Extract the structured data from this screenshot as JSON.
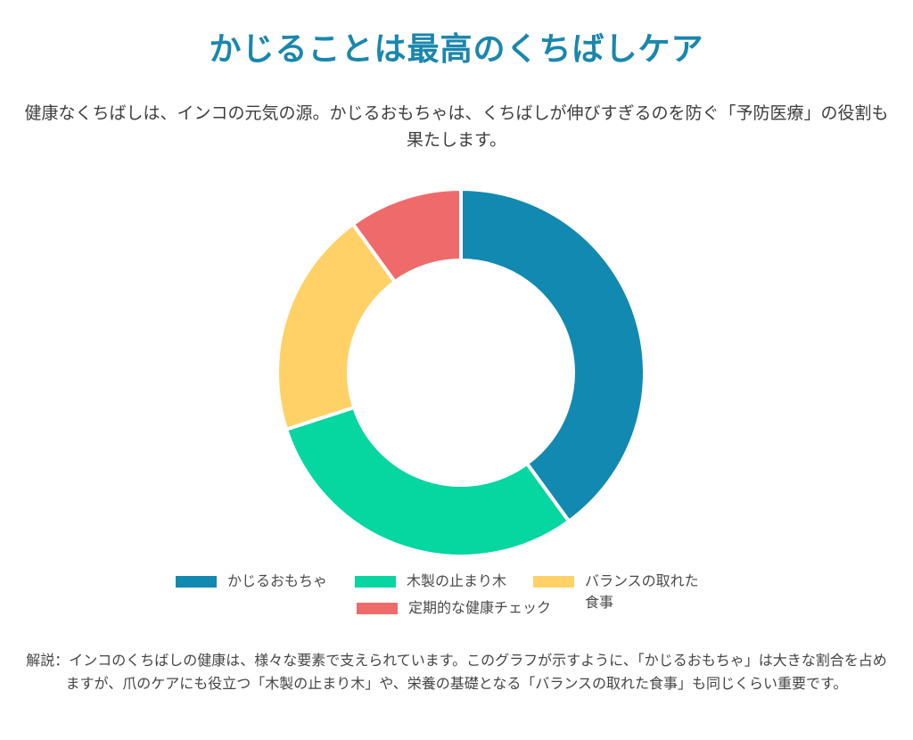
{
  "title": "かじることは最高のくちばしケア",
  "subtitle": "健康なくちばしは、インコの元気の源。かじるおもちゃは、くちばしが伸びすぎるのを防ぐ「予防医療」の役割も果たします。",
  "note": "解説：インコのくちばしの健康は、様々な要素で支えられています。このグラフが示すように、「かじるおもちゃ」は大きな割合を占めますが、爪のケアにも役立つ「木製の止まり木」や、栄養の基礎となる「バランスの取れた食事」も同じくらい重要です。",
  "chart_data": {
    "type": "pie",
    "donut": true,
    "categories": [
      "かじるおもちゃ",
      "木製の止まり木",
      "バランスの取れた食事",
      "定期的な健康チェック"
    ],
    "values": [
      40,
      30,
      20,
      10
    ],
    "colors": [
      "#1289b0",
      "#06d6a0",
      "#ffd166",
      "#ef6b6b"
    ],
    "legend_position": "bottom",
    "legend_labels": [
      "かじるおもちゃ",
      "木製の止まり木",
      "バランスの取れた\n食事",
      "定期的な健康チェック"
    ]
  }
}
